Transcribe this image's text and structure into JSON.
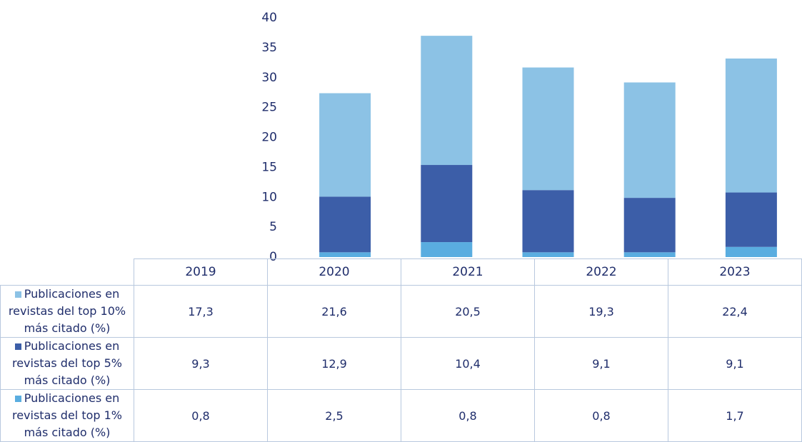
{
  "chart_data": {
    "type": "stacked_bar",
    "categories": [
      "2019",
      "2020",
      "2021",
      "2022",
      "2023"
    ],
    "series": [
      {
        "name": "Publicaciones en revistas del top 10% más citado (%)",
        "color": "#8cc2e5",
        "values": [
          17.3,
          21.6,
          20.5,
          19.3,
          22.4
        ],
        "value_labels": [
          "17,3",
          "21,6",
          "20,5",
          "19,3",
          "22,4"
        ]
      },
      {
        "name": "Publicaciones en revistas del top 5% más citado (%)",
        "color": "#3c5ea8",
        "values": [
          9.3,
          12.9,
          10.4,
          9.1,
          9.1
        ],
        "value_labels": [
          "9,3",
          "12,9",
          "10,4",
          "9,1",
          "9,1"
        ]
      },
      {
        "name": "Publicaciones en revistas del top 1% más citado (%)",
        "color": "#5aade0",
        "values": [
          0.8,
          2.5,
          0.8,
          0.8,
          1.7
        ],
        "value_labels": [
          "0,8",
          "2,5",
          "0,8",
          "0,8",
          "1,7"
        ]
      }
    ],
    "ylim": [
      0,
      40
    ],
    "yticks": [
      0,
      5,
      10,
      15,
      20,
      25,
      30,
      35,
      40
    ]
  }
}
